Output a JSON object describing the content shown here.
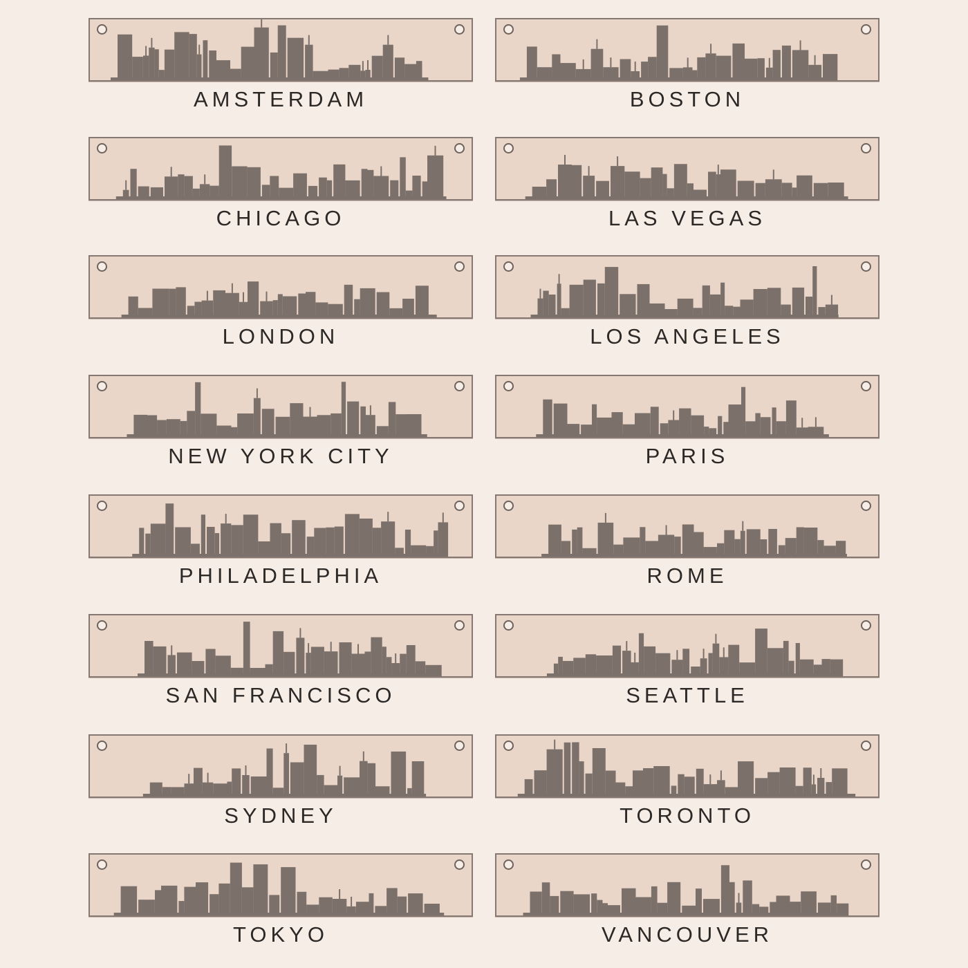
{
  "colors": {
    "background": "#f7ede7",
    "plate": "#ead6c9",
    "skyline": "#7b706a",
    "text": "#2b2826"
  },
  "cities": [
    "AMSTERDAM",
    "BOSTON",
    "CHICAGO",
    "LAS VEGAS",
    "LONDON",
    "LOS ANGELES",
    "NEW YORK CITY",
    "PARIS",
    "PHILADELPHIA",
    "ROME",
    "SAN FRANCISCO",
    "SEATTLE",
    "SYDNEY",
    "TORONTO",
    "TOKYO",
    "VANCOUVER"
  ]
}
